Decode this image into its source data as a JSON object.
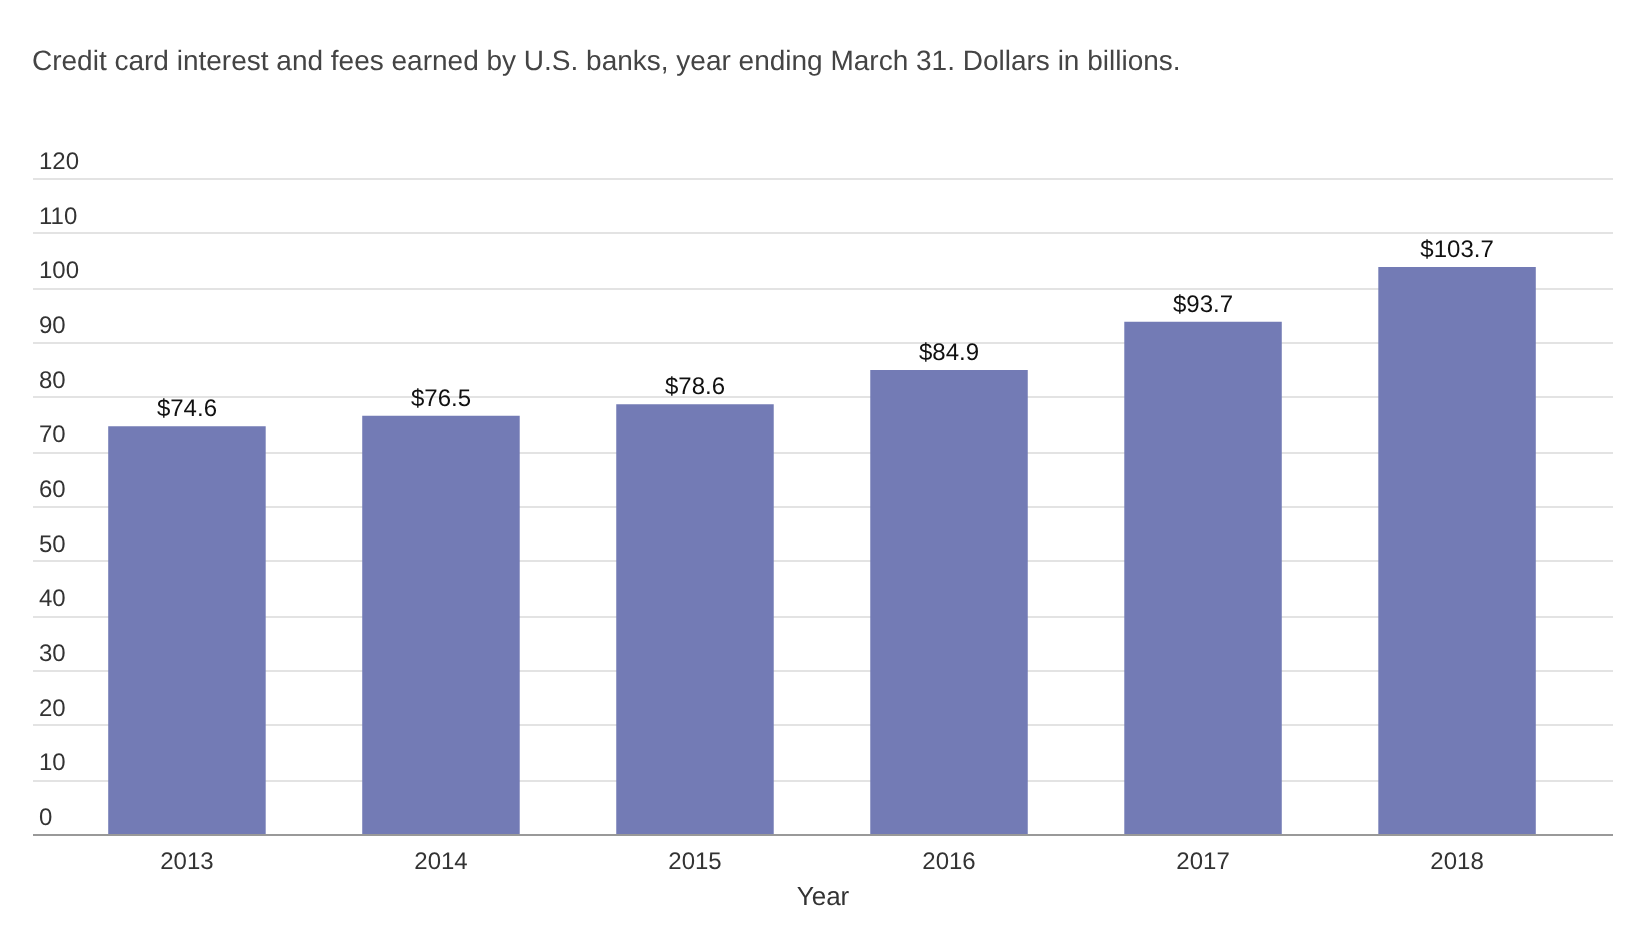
{
  "chart_data": {
    "type": "bar",
    "title": "Credit card interest and fees earned by U.S. banks, year ending March 31. Dollars in billions.",
    "xlabel": "Year",
    "categories": [
      "2013",
      "2014",
      "2015",
      "2016",
      "2017",
      "2018"
    ],
    "values": [
      74.6,
      76.5,
      78.6,
      84.9,
      93.7,
      103.7
    ],
    "value_labels": [
      "$74.6",
      "$76.5",
      "$78.6",
      "$84.9",
      "$93.7",
      "$103.7"
    ],
    "color": "#737bb5",
    "ylim": [
      0,
      120
    ],
    "yticks": [
      0,
      10,
      20,
      30,
      40,
      50,
      60,
      70,
      80,
      90,
      100,
      110,
      120
    ],
    "grid": "y"
  }
}
